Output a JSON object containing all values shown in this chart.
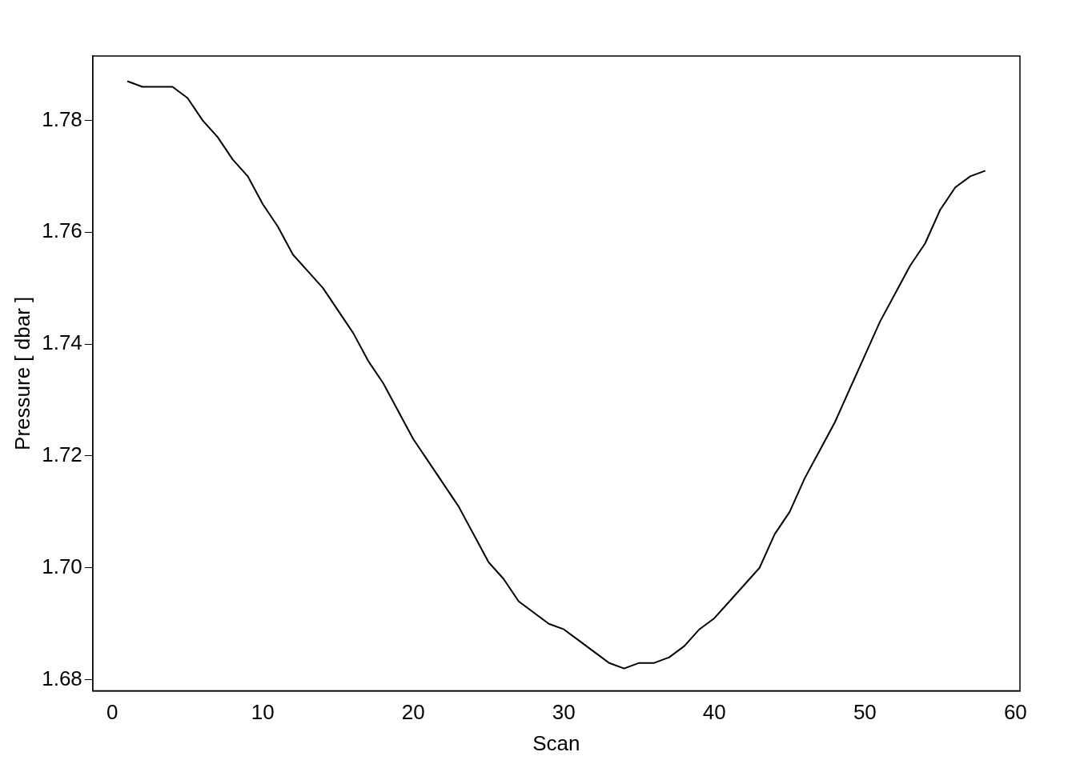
{
  "chart_data": {
    "type": "line",
    "xlabel": "Scan",
    "ylabel": "Pressure [ dbar ]",
    "x": [
      1,
      2,
      3,
      4,
      5,
      6,
      7,
      8,
      9,
      10,
      11,
      12,
      13,
      14,
      15,
      16,
      17,
      18,
      19,
      20,
      21,
      22,
      23,
      24,
      25,
      26,
      27,
      28,
      29,
      30,
      31,
      32,
      33,
      34,
      35,
      36,
      37,
      38,
      39,
      40,
      41,
      42,
      43,
      44,
      45,
      46,
      47,
      48,
      49,
      50,
      51,
      52,
      53,
      54,
      55,
      56,
      57,
      58
    ],
    "series": [
      {
        "color": "#000000",
        "values": [
          1.787,
          1.786,
          1.786,
          1.786,
          1.784,
          1.78,
          1.777,
          1.773,
          1.77,
          1.765,
          1.761,
          1.756,
          1.753,
          1.75,
          1.746,
          1.742,
          1.737,
          1.733,
          1.728,
          1.723,
          1.719,
          1.715,
          1.711,
          1.706,
          1.701,
          1.698,
          1.694,
          1.692,
          1.69,
          1.689,
          1.687,
          1.685,
          1.683,
          1.682,
          1.683,
          1.683,
          1.684,
          1.686,
          1.689,
          1.691,
          1.694,
          1.697,
          1.7,
          1.706,
          1.71,
          1.716,
          1.721,
          1.726,
          1.732,
          1.738,
          1.744,
          1.749,
          1.754,
          1.758,
          1.764,
          1.768,
          1.77,
          1.771
        ]
      }
    ],
    "xlim": [
      -1.3,
      60.3
    ],
    "ylim": [
      1.678,
      1.7915
    ],
    "xticks": [
      0,
      10,
      20,
      30,
      40,
      50,
      60
    ],
    "yticks": [
      {
        "value": 1.68,
        "label": "1.68"
      },
      {
        "value": 1.7,
        "label": "1.70"
      },
      {
        "value": 1.72,
        "label": "1.72"
      },
      {
        "value": 1.74,
        "label": "1.74"
      },
      {
        "value": 1.76,
        "label": "1.76"
      },
      {
        "value": 1.78,
        "label": "1.78"
      }
    ],
    "grid": false,
    "legend": false,
    "marker": "none",
    "line_style": "solid"
  }
}
